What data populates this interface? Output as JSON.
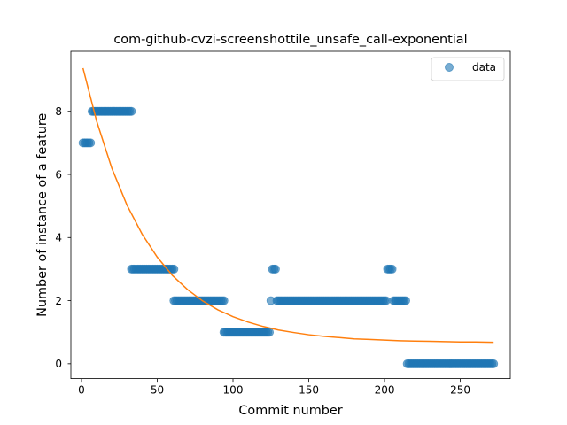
{
  "chart_data": {
    "type": "scatter",
    "title": "com-github-cvzi-screenshottile_unsafe_call-exponential",
    "xlabel": "Commit number",
    "ylabel": "Number of instance of a feature",
    "xlim": [
      -7,
      283
    ],
    "ylim": [
      -0.47,
      9.9
    ],
    "xticks": [
      0,
      50,
      100,
      150,
      200,
      250
    ],
    "yticks": [
      0,
      2,
      4,
      6,
      8
    ],
    "legend": {
      "position": "top-right",
      "entries": [
        "data"
      ]
    },
    "colors": {
      "data": "#1f77b4",
      "fit": "#ff7f0e"
    },
    "series": [
      {
        "name": "data",
        "kind": "scatter",
        "segments": [
          {
            "x_start": 1,
            "x_end": 6,
            "y": 7
          },
          {
            "x_start": 7,
            "x_end": 33,
            "y": 8
          },
          {
            "x_start": 33,
            "x_end": 61,
            "y": 3
          },
          {
            "x_start": 61,
            "x_end": 94,
            "y": 2
          },
          {
            "x_start": 94,
            "x_end": 124,
            "y": 1
          },
          {
            "x_start": 125,
            "x_end": 125,
            "y": 2
          },
          {
            "x_start": 126,
            "x_end": 128,
            "y": 3
          },
          {
            "x_start": 129,
            "x_end": 201,
            "y": 2
          },
          {
            "x_start": 202,
            "x_end": 205,
            "y": 3
          },
          {
            "x_start": 206,
            "x_end": 214,
            "y": 2
          },
          {
            "x_start": 215,
            "x_end": 272,
            "y": 0
          }
        ]
      },
      {
        "kind": "line",
        "x": [
          1,
          10,
          20,
          30,
          40,
          50,
          60,
          70,
          80,
          90,
          100,
          110,
          120,
          130,
          140,
          150,
          160,
          170,
          180,
          190,
          200,
          210,
          220,
          230,
          240,
          250,
          260,
          272
        ],
        "y": [
          9.37,
          7.69,
          6.2,
          5.03,
          4.11,
          3.38,
          2.8,
          2.35,
          1.99,
          1.71,
          1.49,
          1.32,
          1.18,
          1.07,
          0.99,
          0.92,
          0.87,
          0.83,
          0.79,
          0.77,
          0.75,
          0.73,
          0.72,
          0.71,
          0.7,
          0.69,
          0.69,
          0.68
        ]
      }
    ]
  }
}
